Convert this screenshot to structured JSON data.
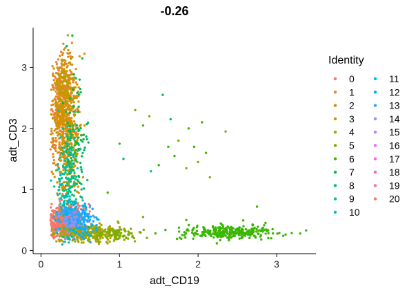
{
  "chart_data": {
    "type": "scatter",
    "title": "-0.26",
    "xlabel": "adt_CD19",
    "ylabel": "adt_CD3",
    "xlim": [
      -0.1,
      3.5
    ],
    "ylim": [
      -0.05,
      3.65
    ],
    "x_ticks": [
      0,
      1,
      2,
      3
    ],
    "y_ticks": [
      0,
      1,
      2,
      3
    ],
    "grid": false,
    "legend": {
      "title": "Identity",
      "placement": "right",
      "entries": [
        {
          "label": "0",
          "color": "#F8766D"
        },
        {
          "label": "1",
          "color": "#EA8331"
        },
        {
          "label": "2",
          "color": "#D89000"
        },
        {
          "label": "3",
          "color": "#C09B00"
        },
        {
          "label": "4",
          "color": "#A3A500"
        },
        {
          "label": "5",
          "color": "#7CAE00"
        },
        {
          "label": "6",
          "color": "#39B600"
        },
        {
          "label": "7",
          "color": "#00BB4E"
        },
        {
          "label": "8",
          "color": "#00BF7D"
        },
        {
          "label": "9",
          "color": "#00C1A3"
        },
        {
          "label": "10",
          "color": "#00BFC4"
        },
        {
          "label": "11",
          "color": "#00BAE0"
        },
        {
          "label": "12",
          "color": "#00B0F6"
        },
        {
          "label": "13",
          "color": "#35A2FF"
        },
        {
          "label": "14",
          "color": "#9590FF"
        },
        {
          "label": "15",
          "color": "#C77CFF"
        },
        {
          "label": "16",
          "color": "#E76BF3"
        },
        {
          "label": "17",
          "color": "#FA62DB"
        },
        {
          "label": "18",
          "color": "#FF62BC"
        },
        {
          "label": "19",
          "color": "#FF6A98"
        },
        {
          "label": "20",
          "color": "#F8766D"
        }
      ]
    },
    "clusters": [
      {
        "label": "0",
        "cx": 0.32,
        "cy": 0.48,
        "sx": 0.1,
        "sy": 0.12,
        "n": 700
      },
      {
        "label": "1",
        "cx": 0.28,
        "cy": 2.4,
        "sx": 0.08,
        "sy": 0.45,
        "n": 380
      },
      {
        "label": "2",
        "cx": 0.33,
        "cy": 1.9,
        "sx": 0.09,
        "sy": 0.55,
        "n": 380
      },
      {
        "label": "3",
        "cx": 0.3,
        "cy": 2.6,
        "sx": 0.07,
        "sy": 0.35,
        "n": 150
      },
      {
        "label": "4",
        "cx": 0.62,
        "cy": 0.28,
        "sx": 0.2,
        "sy": 0.07,
        "n": 300
      },
      {
        "label": "5",
        "cx": 0.95,
        "cy": 0.28,
        "sx": 0.18,
        "sy": 0.05,
        "n": 70
      },
      {
        "label": "6",
        "cx": 2.4,
        "cy": 0.3,
        "sx": 0.3,
        "sy": 0.06,
        "n": 280
      },
      {
        "label": "7",
        "cx": 0.45,
        "cy": 1.8,
        "sx": 0.08,
        "sy": 0.5,
        "n": 80
      },
      {
        "label": "8",
        "cx": 0.37,
        "cy": 1.3,
        "sx": 0.07,
        "sy": 0.4,
        "n": 100
      },
      {
        "label": "9",
        "cx": 0.3,
        "cy": 1.0,
        "sx": 0.07,
        "sy": 0.45,
        "n": 70
      },
      {
        "label": "10",
        "cx": 0.32,
        "cy": 0.7,
        "sx": 0.08,
        "sy": 0.25,
        "n": 50
      },
      {
        "label": "12",
        "cx": 0.5,
        "cy": 0.5,
        "sx": 0.1,
        "sy": 0.15,
        "n": 110
      },
      {
        "label": "13",
        "cx": 0.45,
        "cy": 0.55,
        "sx": 0.1,
        "sy": 0.12,
        "n": 70
      },
      {
        "label": "14",
        "cx": 0.38,
        "cy": 0.45,
        "sx": 0.07,
        "sy": 0.1,
        "n": 30
      }
    ],
    "sparse_points": [
      {
        "x": 1.2,
        "y": 2.3,
        "label": "5"
      },
      {
        "x": 1.38,
        "y": 2.2,
        "label": "5"
      },
      {
        "x": 1.55,
        "y": 2.55,
        "label": "7"
      },
      {
        "x": 1.62,
        "y": 1.7,
        "label": "6"
      },
      {
        "x": 1.7,
        "y": 1.55,
        "label": "6"
      },
      {
        "x": 1.75,
        "y": 1.8,
        "label": "5"
      },
      {
        "x": 1.88,
        "y": 2.0,
        "label": "6"
      },
      {
        "x": 1.85,
        "y": 1.35,
        "label": "5"
      },
      {
        "x": 2.05,
        "y": 2.1,
        "label": "6"
      },
      {
        "x": 2.1,
        "y": 1.6,
        "label": "6"
      },
      {
        "x": 2.15,
        "y": 1.2,
        "label": "5"
      },
      {
        "x": 2.35,
        "y": 1.95,
        "label": "5"
      },
      {
        "x": 1.0,
        "y": 1.75,
        "label": "6"
      },
      {
        "x": 1.05,
        "y": 1.5,
        "label": "7"
      },
      {
        "x": 1.3,
        "y": 2.05,
        "label": "6"
      },
      {
        "x": 1.4,
        "y": 1.3,
        "label": "8"
      },
      {
        "x": 1.5,
        "y": 1.4,
        "label": "6"
      },
      {
        "x": 1.65,
        "y": 2.15,
        "label": "7"
      },
      {
        "x": 1.95,
        "y": 1.7,
        "label": "6"
      },
      {
        "x": 2.0,
        "y": 1.45,
        "label": "5"
      },
      {
        "x": 0.4,
        "y": 3.52,
        "label": "7"
      },
      {
        "x": 2.75,
        "y": 0.72,
        "label": "6"
      },
      {
        "x": 3.3,
        "y": 0.28,
        "label": "6"
      },
      {
        "x": 1.3,
        "y": 0.55,
        "label": "5"
      },
      {
        "x": 1.85,
        "y": 0.5,
        "label": "6"
      },
      {
        "x": 0.85,
        "y": 0.95,
        "label": "6"
      }
    ]
  }
}
